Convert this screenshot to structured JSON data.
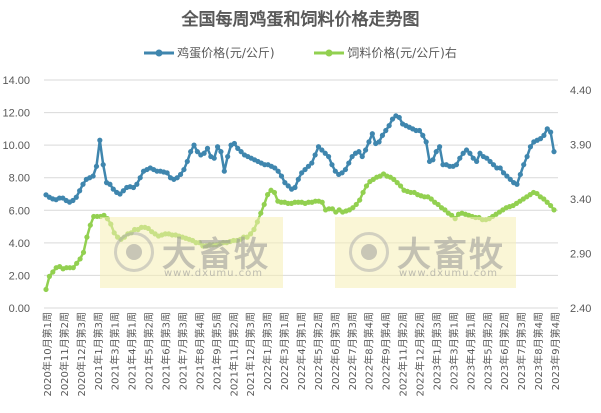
{
  "chart_data": {
    "type": "line",
    "title": "全国每周鸡蛋和饲料价格走势图",
    "legend": [
      "鸡蛋价格(元/公斤)",
      "饲料价格(元/公斤)右"
    ],
    "legend_position": "top",
    "y_left": {
      "ticks": [
        "0.00",
        "2.00",
        "4.00",
        "6.00",
        "8.00",
        "10.00",
        "12.00",
        "14.00"
      ],
      "range": [
        0,
        14
      ]
    },
    "y_right": {
      "ticks": [
        "2.40",
        "2.90",
        "3.40",
        "3.90",
        "4.40"
      ],
      "range": [
        2.4,
        4.4
      ]
    },
    "grid": true,
    "x_tick_labels": [
      "2020年10月第1周",
      "2020年11月第2周",
      "2020年12月第3周",
      "2021年1月第3周",
      "2021年3月第1周",
      "2021年4月第1周",
      "2021年5月第2周",
      "2021年6月第3周",
      "2021年7月第3周",
      "2021年8月第4周",
      "2021年9月第5周",
      "2021年11月第2周",
      "2021年12月第3周",
      "2022年1月第3周",
      "2022年3月第1周",
      "2022年4月第1周",
      "2022年5月第2周",
      "2022年6月第3周",
      "2022年7月第3周",
      "2022年8月第4周",
      "2022年9月第4周",
      "2022年11月第2周",
      "2022年12月第2周",
      "2023年1月第3周",
      "2023年3月第1周",
      "2023年4月第1周",
      "2023年5月第2周",
      "2023年6月第2周",
      "2023年7月第3周",
      "2023年8月第4周",
      "2023年9月第4周"
    ],
    "series": [
      {
        "name": "鸡蛋价格(元/公斤)",
        "axis": "left",
        "color": "#3F86AE",
        "values": [
          6.95,
          6.8,
          6.7,
          6.65,
          6.75,
          6.75,
          6.6,
          6.5,
          6.6,
          6.8,
          7.2,
          7.6,
          7.9,
          8.0,
          8.1,
          8.7,
          10.3,
          8.8,
          7.7,
          7.6,
          7.3,
          7.1,
          7.0,
          7.2,
          7.4,
          7.45,
          7.4,
          7.6,
          8.0,
          8.4,
          8.5,
          8.6,
          8.5,
          8.4,
          8.4,
          8.35,
          8.3,
          8.0,
          7.9,
          8.0,
          8.2,
          8.5,
          9.0,
          9.6,
          10.0,
          9.6,
          9.4,
          9.5,
          9.8,
          9.3,
          9.2,
          9.9,
          9.6,
          8.4,
          9.3,
          10.0,
          10.1,
          9.8,
          9.6,
          9.4,
          9.3,
          9.2,
          9.1,
          9.0,
          8.9,
          8.8,
          8.8,
          8.7,
          8.6,
          8.4,
          8.1,
          7.7,
          7.5,
          7.3,
          7.4,
          7.9,
          8.3,
          8.5,
          8.7,
          8.9,
          9.4,
          9.9,
          9.7,
          9.5,
          9.3,
          8.8,
          8.4,
          8.2,
          8.3,
          8.5,
          8.9,
          9.3,
          9.5,
          9.6,
          9.3,
          9.7,
          10.2,
          10.7,
          10.1,
          10.2,
          10.6,
          10.9,
          11.2,
          11.6,
          11.8,
          11.7,
          11.3,
          11.2,
          11.1,
          11.0,
          10.9,
          10.9,
          10.6,
          10.2,
          9.0,
          9.1,
          9.6,
          9.9,
          8.8,
          8.8,
          8.7,
          8.7,
          8.8,
          9.2,
          9.5,
          9.7,
          9.5,
          9.2,
          9.0,
          9.5,
          9.3,
          9.2,
          9.0,
          8.8,
          8.6,
          8.6,
          8.3,
          8.1,
          7.9,
          7.7,
          7.6,
          8.2,
          8.8,
          9.3,
          9.9,
          10.2,
          10.3,
          10.4,
          10.6,
          11.0,
          10.8,
          9.6
        ]
      },
      {
        "name": "饲料价格(元/公斤)右",
        "axis": "right",
        "color": "#92D050",
        "values": [
          2.57,
          2.69,
          2.73,
          2.77,
          2.78,
          2.76,
          2.77,
          2.77,
          2.77,
          2.81,
          2.85,
          2.91,
          3.05,
          3.16,
          3.24,
          3.24,
          3.24,
          3.25,
          3.22,
          3.17,
          3.09,
          3.05,
          3.03,
          3.05,
          3.08,
          3.09,
          3.12,
          3.12,
          3.14,
          3.14,
          3.13,
          3.1,
          3.08,
          3.06,
          3.07,
          3.08,
          3.08,
          3.07,
          3.07,
          3.06,
          3.05,
          3.04,
          3.03,
          3.02,
          3.0,
          3.0,
          2.97,
          2.97,
          2.98,
          2.98,
          2.98,
          2.99,
          3.0,
          3.0,
          3.01,
          3.02,
          3.02,
          3.03,
          3.05,
          3.05,
          3.08,
          3.12,
          3.19,
          3.27,
          3.35,
          3.44,
          3.48,
          3.46,
          3.38,
          3.37,
          3.37,
          3.36,
          3.36,
          3.37,
          3.37,
          3.37,
          3.36,
          3.37,
          3.37,
          3.38,
          3.38,
          3.37,
          3.3,
          3.31,
          3.31,
          3.28,
          3.3,
          3.28,
          3.29,
          3.3,
          3.32,
          3.35,
          3.39,
          3.46,
          3.52,
          3.56,
          3.58,
          3.6,
          3.61,
          3.63,
          3.61,
          3.6,
          3.58,
          3.55,
          3.52,
          3.48,
          3.47,
          3.46,
          3.46,
          3.44,
          3.43,
          3.42,
          3.42,
          3.4,
          3.37,
          3.35,
          3.32,
          3.3,
          3.27,
          3.25,
          3.22,
          3.26,
          3.27,
          3.26,
          3.25,
          3.24,
          3.23,
          3.23,
          3.21,
          3.21,
          3.22,
          3.24,
          3.26,
          3.28,
          3.3,
          3.32,
          3.33,
          3.34,
          3.36,
          3.38,
          3.4,
          3.42,
          3.44,
          3.46,
          3.45,
          3.42,
          3.4,
          3.37,
          3.34,
          3.3
        ]
      }
    ]
  },
  "watermarks": [
    {
      "brand": "大畜牧",
      "url": "www.dxumu.com"
    },
    {
      "brand": "大畜牧",
      "url": "www.dxumu.com"
    }
  ]
}
